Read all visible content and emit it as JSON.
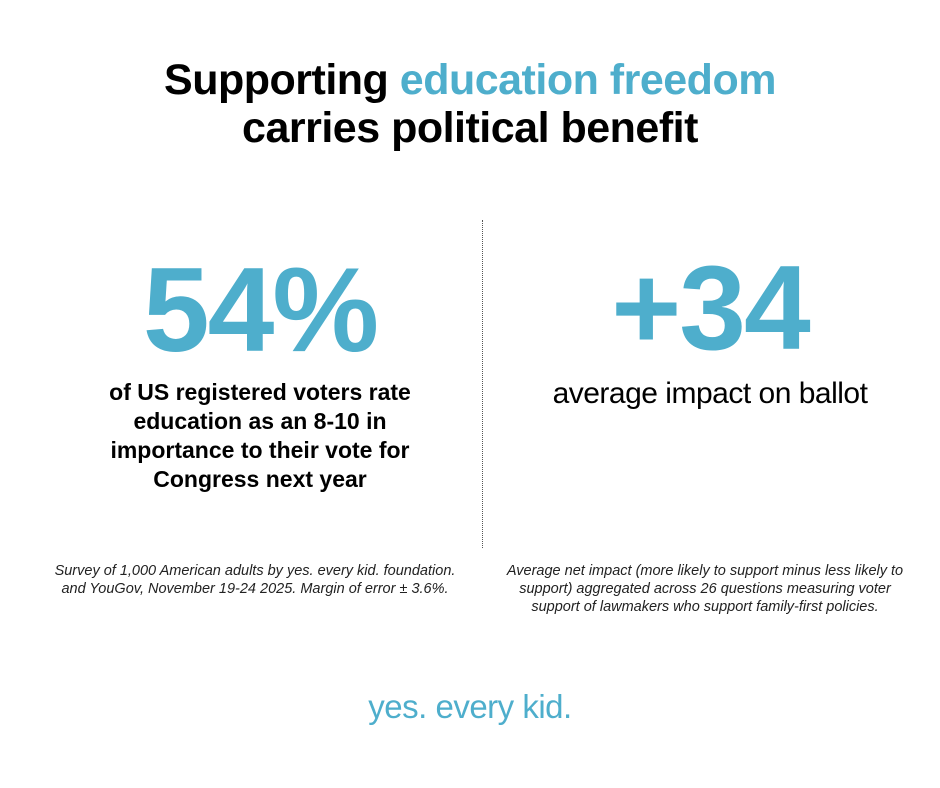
{
  "headline": {
    "part1": "Supporting ",
    "accent": "education freedom",
    "line2": "carries political benefit"
  },
  "left_stat": {
    "value": "54%",
    "description": "of US registered voters rate education as an 8-10 in importance to their vote for Congress next year",
    "footnote": "Survey of 1,000 American adults by yes. every kid. foundation. and YouGov, November 19-24 2025. Margin of error ± 3.6%."
  },
  "right_stat": {
    "value": "+34",
    "description": "average impact on ballot",
    "footnote": "Average net impact (more likely to support minus less likely to support) aggregated across 26 questions measuring voter support of lawmakers who support family-first policies."
  },
  "brand": {
    "name": "yes. every kid."
  },
  "colors": {
    "accent": "#4eaecc",
    "text": "#000000"
  }
}
